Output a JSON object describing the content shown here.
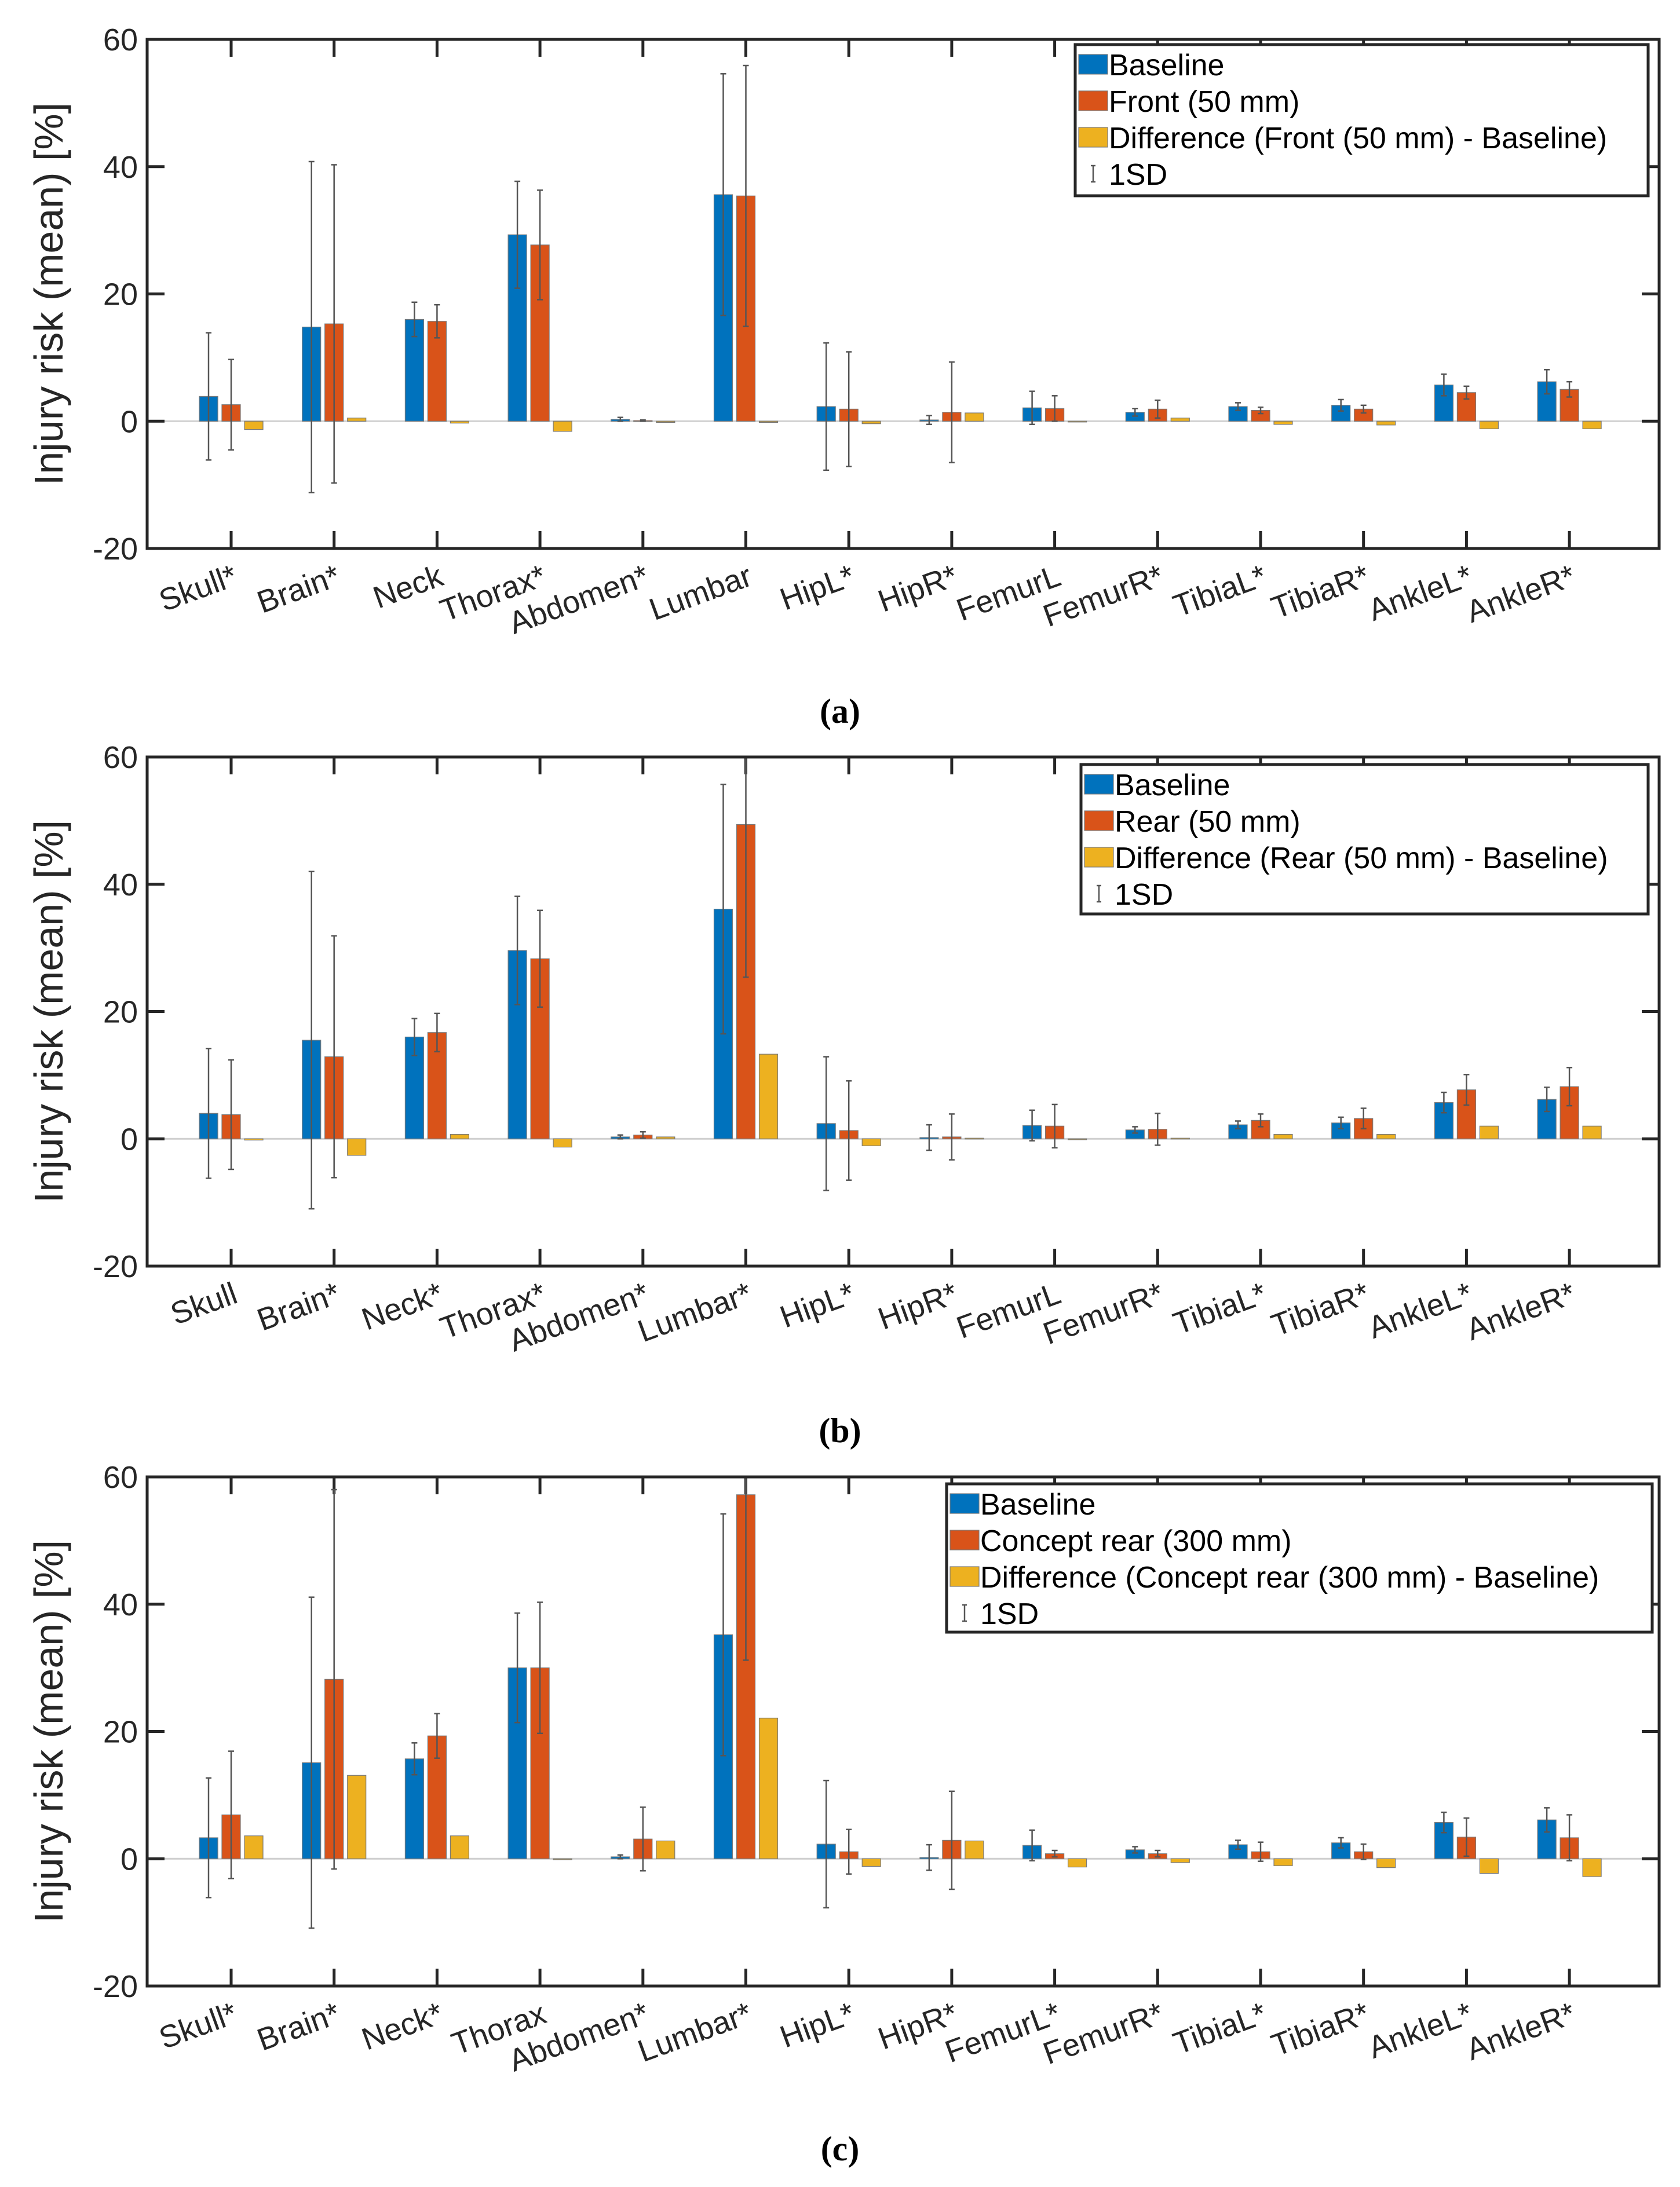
{
  "colors": {
    "baseline": "#0072BD",
    "variant": "#D95319",
    "difference": "#EDB120",
    "errorbar": "#555555",
    "axis": "#262626"
  },
  "chart_data": [
    {
      "type": "bar",
      "caption": "(a)",
      "ylabel": "Injury risk (mean) [%]",
      "ylim": [
        -20,
        60
      ],
      "yticks": [
        -20,
        0,
        20,
        40,
        60
      ],
      "legend_position": "top-right",
      "legend": [
        "Baseline",
        "Front (50 mm)",
        "Difference (Front (50 mm) - Baseline)",
        "1SD"
      ],
      "categories": [
        "Skull*",
        "Brain*",
        "Neck",
        "Thorax*",
        "Abdomen*",
        "Lumbar",
        "HipL*",
        "HipR*",
        "FemurL",
        "FemurR*",
        "TibiaL*",
        "TibiaR*",
        "AnkleL*",
        "AnkleR*"
      ],
      "series": [
        {
          "name": "Baseline",
          "values": [
            3.9,
            14.8,
            16.0,
            29.3,
            0.3,
            35.6,
            2.3,
            0.2,
            2.1,
            1.4,
            2.3,
            2.5,
            5.7,
            6.2
          ],
          "sd": [
            10.0,
            26.0,
            2.7,
            8.4,
            0.3,
            19.0,
            10.0,
            0.7,
            2.6,
            0.6,
            0.6,
            0.9,
            1.7,
            1.9
          ]
        },
        {
          "name": "Front (50 mm)",
          "values": [
            2.6,
            15.3,
            15.7,
            27.7,
            0.1,
            35.4,
            1.9,
            1.4,
            2.0,
            1.9,
            1.7,
            1.9,
            4.5,
            5.0
          ],
          "sd": [
            7.1,
            25.0,
            2.6,
            8.6,
            0.1,
            20.5,
            9.0,
            7.9,
            2.0,
            1.4,
            0.5,
            0.6,
            1.0,
            1.2
          ]
        },
        {
          "name": "Difference (Front (50 mm) - Baseline)",
          "values": [
            -1.3,
            0.5,
            -0.3,
            -1.6,
            -0.2,
            -0.2,
            -0.4,
            1.3,
            -0.1,
            0.5,
            -0.5,
            -0.6,
            -1.2,
            -1.2
          ]
        }
      ]
    },
    {
      "type": "bar",
      "caption": "(b)",
      "ylabel": "Injury risk (mean) [%]",
      "ylim": [
        -20,
        60
      ],
      "yticks": [
        -20,
        0,
        20,
        40,
        60
      ],
      "legend_position": "top-right",
      "legend": [
        "Baseline",
        "Rear (50 mm)",
        "Difference (Rear (50 mm) - Baseline)",
        "1SD"
      ],
      "categories": [
        "Skull",
        "Brain*",
        "Neck*",
        "Thorax*",
        "Abdomen*",
        "Lumbar*",
        "HipL*",
        "HipR*",
        "FemurL",
        "FemurR*",
        "TibiaL*",
        "TibiaR*",
        "AnkleL*",
        "AnkleR*"
      ],
      "series": [
        {
          "name": "Baseline",
          "values": [
            4.0,
            15.5,
            16.0,
            29.6,
            0.3,
            36.1,
            2.4,
            0.2,
            2.1,
            1.4,
            2.2,
            2.5,
            5.7,
            6.2
          ],
          "sd": [
            10.2,
            26.5,
            2.9,
            8.5,
            0.3,
            19.6,
            10.5,
            2.0,
            2.4,
            0.5,
            0.6,
            0.9,
            1.6,
            1.9
          ]
        },
        {
          "name": "Rear (50 mm)",
          "values": [
            3.8,
            12.9,
            16.7,
            28.3,
            0.6,
            49.4,
            1.3,
            0.3,
            2.0,
            1.5,
            2.9,
            3.2,
            7.7,
            8.2
          ],
          "sd": [
            8.6,
            19.0,
            3.0,
            7.6,
            0.5,
            24.0,
            7.8,
            3.6,
            3.4,
            2.5,
            1.0,
            1.6,
            2.4,
            3.0
          ]
        },
        {
          "name": "Difference (Rear (50 mm) - Baseline)",
          "values": [
            -0.2,
            -2.6,
            0.7,
            -1.3,
            0.3,
            13.3,
            -1.1,
            0.1,
            -0.1,
            0.1,
            0.7,
            0.7,
            2.0,
            2.0
          ]
        }
      ]
    },
    {
      "type": "bar",
      "caption": "(c)",
      "ylabel": "Injury risk (mean) [%]",
      "ylim": [
        -20,
        60
      ],
      "yticks": [
        -20,
        0,
        20,
        40,
        60
      ],
      "legend_position": "top-right",
      "legend": [
        "Baseline",
        "Concept rear (300 mm)",
        "Difference (Concept rear (300 mm) - Baseline)",
        "1SD"
      ],
      "categories": [
        "Skull*",
        "Brain*",
        "Neck*",
        "Thorax",
        "Abdomen*",
        "Lumbar*",
        "HipL*",
        "HipR*",
        "FemurL*",
        "FemurR*",
        "TibiaL*",
        "TibiaR*",
        "AnkleL*",
        "AnkleR*"
      ],
      "series": [
        {
          "name": "Baseline",
          "values": [
            3.3,
            15.1,
            15.7,
            30.0,
            0.3,
            35.2,
            2.3,
            0.2,
            2.1,
            1.4,
            2.2,
            2.5,
            5.7,
            6.1
          ],
          "sd": [
            9.4,
            26.0,
            2.5,
            8.6,
            0.3,
            19.0,
            10.0,
            2.0,
            2.4,
            0.5,
            0.7,
            0.8,
            1.6,
            1.9
          ]
        },
        {
          "name": "Concept rear (300 mm)",
          "values": [
            6.9,
            28.2,
            19.3,
            30.0,
            3.1,
            57.2,
            1.1,
            2.9,
            0.8,
            0.8,
            1.1,
            1.1,
            3.4,
            3.3
          ],
          "sd": [
            10.0,
            29.8,
            3.5,
            10.3,
            5.0,
            26.0,
            3.5,
            7.7,
            0.5,
            0.5,
            1.5,
            1.2,
            3.0,
            3.6
          ]
        },
        {
          "name": "Difference (Concept rear (300 mm) - Baseline)",
          "values": [
            3.6,
            13.1,
            3.6,
            0.0,
            2.8,
            22.1,
            -1.2,
            2.8,
            -1.3,
            -0.6,
            -1.1,
            -1.4,
            -2.3,
            -2.8
          ]
        }
      ]
    }
  ]
}
